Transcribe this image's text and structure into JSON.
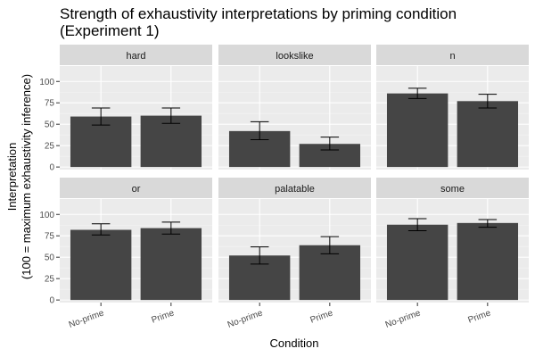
{
  "chart_data": {
    "type": "bar",
    "title": "Strength of exhaustivity interpretations by priming condition",
    "subtitle": "(Experiment 1)",
    "xlabel": "Condition",
    "ylabel": "Interpretation",
    "ylabel_sub": "(100 = maximum exhaustivity inference)",
    "categories": [
      "No-prime",
      "Prime"
    ],
    "ylim": [
      -3,
      118
    ],
    "yticks": [
      0,
      25,
      50,
      75,
      100
    ],
    "grid": true,
    "facet_layout": "2 rows x 3 columns",
    "colors": {
      "bar": "#454545",
      "panel_bg": "#ebebeb",
      "strip_bg": "#d9d9d9",
      "grid_major": "#ffffff",
      "grid_minor": "#f4f4f4"
    },
    "panels": [
      {
        "label": "hard",
        "values": [
          59,
          60
        ],
        "error_low": [
          49,
          51
        ],
        "error_high": [
          69,
          69
        ]
      },
      {
        "label": "lookslike",
        "values": [
          42,
          27
        ],
        "error_low": [
          32,
          20
        ],
        "error_high": [
          53,
          35
        ]
      },
      {
        "label": "n",
        "values": [
          86,
          77
        ],
        "error_low": [
          80,
          69
        ],
        "error_high": [
          92,
          85
        ]
      },
      {
        "label": "or",
        "values": [
          82,
          84
        ],
        "error_low": [
          76,
          77
        ],
        "error_high": [
          89,
          91
        ]
      },
      {
        "label": "palatable",
        "values": [
          52,
          64
        ],
        "error_low": [
          42,
          54
        ],
        "error_high": [
          62,
          74
        ]
      },
      {
        "label": "some",
        "values": [
          88,
          90
        ],
        "error_low": [
          81,
          85
        ],
        "error_high": [
          95,
          94
        ]
      }
    ]
  }
}
